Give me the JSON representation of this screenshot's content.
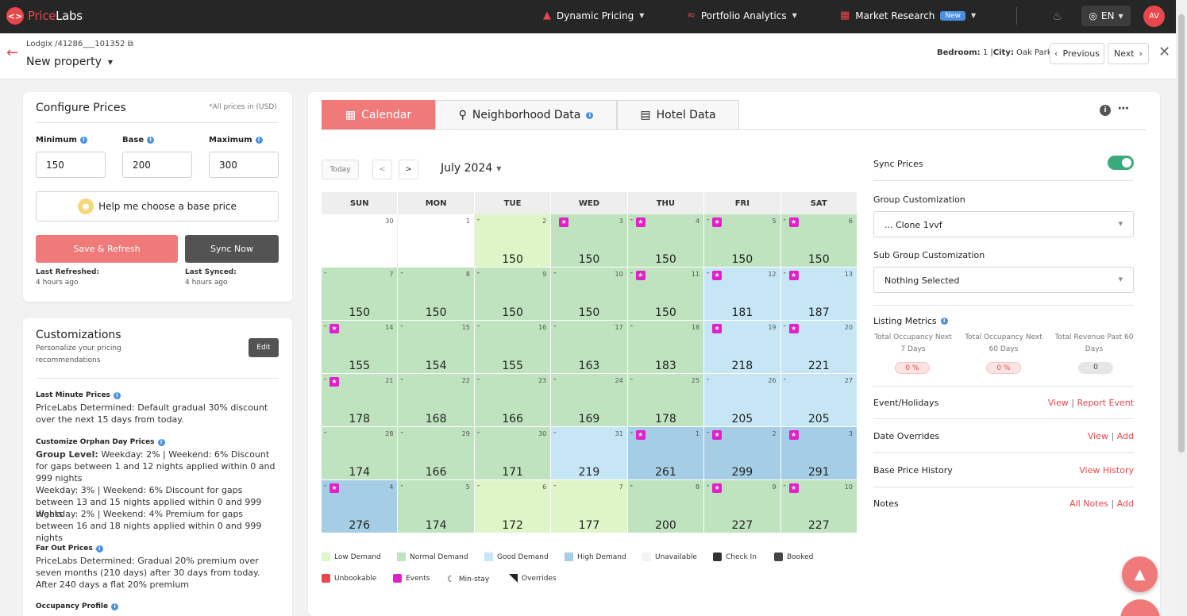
{
  "colors": {
    "brand": "#e8474b",
    "low": "#ddf5c7",
    "normal": "#bfe2bf",
    "good": "#c6e6f6",
    "high": "#a6cde6",
    "unavailable": "#ffffff",
    "star": "#e020c8"
  },
  "topnav": {
    "logo_price": "Price",
    "logo_labs": "Labs",
    "items": [
      {
        "label": "Dynamic Pricing",
        "icon": "flame-icon"
      },
      {
        "label": "Portfolio Analytics",
        "icon": "trend-icon"
      },
      {
        "label": "Market Research",
        "icon": "grid-icon",
        "badge": "New"
      }
    ],
    "lang": "EN",
    "avatar": "AV"
  },
  "subheader": {
    "crumb_prefix": "Lodgix /",
    "crumb_id": "41286___101352",
    "property": "New property",
    "meta_bedroom_label": "Bedroom:",
    "meta_bedroom": "1 |",
    "meta_city_label": "City:",
    "meta_city": "Oak Park",
    "prev": "Previous",
    "next": "Next"
  },
  "configure": {
    "title": "Configure Prices",
    "note": "*All prices in (USD)",
    "min_label": "Minimum",
    "base_label": "Base",
    "max_label": "Maximum",
    "min": "150",
    "base": "200",
    "max": "300",
    "help": "Help me choose a base price",
    "save": "Save & Refresh",
    "sync": "Sync Now",
    "last_refreshed_label": "Last Refreshed:",
    "last_refreshed": "4 hours ago",
    "last_synced_label": "Last Synced:",
    "last_synced": "4 hours ago"
  },
  "customizations": {
    "title": "Customizations",
    "subtitle": "Personalize your pricing recommendations",
    "edit": "Edit",
    "sections": [
      {
        "title": "Last Minute Prices",
        "text": "PriceLabs Determined: Default gradual 30% discount over the next 15 days from today."
      },
      {
        "title": "Customize Orphan Day Prices",
        "text_bold": "Group Level:",
        "text": "Weekday: 2% | Weekend: 6% Discount for gaps between 1 and 12 nights applied within 0 and 999 nights",
        "text2": "Weekday: 3% | Weekend: 6% Discount for gaps between 13 and 15 nights applied within 0 and 999 nights",
        "text3": "Weekday: 2% | Weekend: 4% Premium for gaps between 16 and 18 nights applied within 0 and 999 nights"
      },
      {
        "title": "Far Out Prices",
        "text": "PriceLabs Determined: Gradual 20% premium over seven months (210 days) after 30 days from today. After 240 days a flat 20% premium"
      },
      {
        "title": "Occupancy Profile",
        "text": ""
      }
    ]
  },
  "tabs": [
    {
      "label": "Calendar",
      "icon": "calendar-icon"
    },
    {
      "label": "Neighborhood Data",
      "icon": "pin-icon"
    },
    {
      "label": "Hotel Data",
      "icon": "bed-icon"
    }
  ],
  "calendar": {
    "today": "Today",
    "month": "July 2024",
    "days": [
      "SUN",
      "MON",
      "TUE",
      "WED",
      "THU",
      "FRI",
      "SAT"
    ],
    "cells": [
      {
        "d": "30",
        "p": "",
        "t": "unavailable",
        "s": false,
        "dash": false
      },
      {
        "d": "1",
        "p": "",
        "t": "unavailable",
        "s": false,
        "dash": false
      },
      {
        "d": "2",
        "p": "150",
        "t": "low",
        "s": false,
        "dash": true
      },
      {
        "d": "3",
        "p": "150",
        "t": "normal",
        "s": true,
        "dash": false
      },
      {
        "d": "4",
        "p": "150",
        "t": "normal",
        "s": true,
        "dash": true
      },
      {
        "d": "5",
        "p": "150",
        "t": "normal",
        "s": true,
        "dash": true
      },
      {
        "d": "6",
        "p": "150",
        "t": "normal",
        "s": true,
        "dash": true
      },
      {
        "d": "7",
        "p": "150",
        "t": "normal",
        "s": false,
        "dash": true
      },
      {
        "d": "8",
        "p": "150",
        "t": "normal",
        "s": false,
        "dash": true
      },
      {
        "d": "9",
        "p": "150",
        "t": "normal",
        "s": false,
        "dash": true
      },
      {
        "d": "10",
        "p": "150",
        "t": "normal",
        "s": false,
        "dash": true
      },
      {
        "d": "11",
        "p": "150",
        "t": "normal",
        "s": true,
        "dash": true
      },
      {
        "d": "12",
        "p": "181",
        "t": "good",
        "s": true,
        "dash": true
      },
      {
        "d": "13",
        "p": "187",
        "t": "good",
        "s": true,
        "dash": true
      },
      {
        "d": "14",
        "p": "155",
        "t": "normal",
        "s": true,
        "dash": true
      },
      {
        "d": "15",
        "p": "154",
        "t": "normal",
        "s": false,
        "dash": true
      },
      {
        "d": "16",
        "p": "155",
        "t": "normal",
        "s": false,
        "dash": true
      },
      {
        "d": "17",
        "p": "163",
        "t": "normal",
        "s": false,
        "dash": true
      },
      {
        "d": "18",
        "p": "183",
        "t": "normal",
        "s": false,
        "dash": true
      },
      {
        "d": "19",
        "p": "218",
        "t": "good",
        "s": true,
        "dash": false
      },
      {
        "d": "20",
        "p": "221",
        "t": "good",
        "s": true,
        "dash": true
      },
      {
        "d": "21",
        "p": "178",
        "t": "normal",
        "s": true,
        "dash": true
      },
      {
        "d": "22",
        "p": "168",
        "t": "normal",
        "s": false,
        "dash": true
      },
      {
        "d": "23",
        "p": "166",
        "t": "normal",
        "s": false,
        "dash": true
      },
      {
        "d": "24",
        "p": "169",
        "t": "normal",
        "s": false,
        "dash": true
      },
      {
        "d": "25",
        "p": "178",
        "t": "normal",
        "s": false,
        "dash": true
      },
      {
        "d": "26",
        "p": "205",
        "t": "good",
        "s": false,
        "dash": true
      },
      {
        "d": "27",
        "p": "205",
        "t": "good",
        "s": false,
        "dash": true
      },
      {
        "d": "28",
        "p": "174",
        "t": "normal",
        "s": false,
        "dash": true
      },
      {
        "d": "29",
        "p": "166",
        "t": "normal",
        "s": false,
        "dash": true
      },
      {
        "d": "30",
        "p": "171",
        "t": "normal",
        "s": false,
        "dash": true
      },
      {
        "d": "31",
        "p": "219",
        "t": "good",
        "s": false,
        "dash": true
      },
      {
        "d": "1",
        "p": "261",
        "t": "high",
        "s": true,
        "dash": true
      },
      {
        "d": "2",
        "p": "299",
        "t": "high",
        "s": true,
        "dash": true
      },
      {
        "d": "3",
        "p": "291",
        "t": "high",
        "s": true,
        "dash": false
      },
      {
        "d": "4",
        "p": "276",
        "t": "high",
        "s": true,
        "dash": true
      },
      {
        "d": "5",
        "p": "174",
        "t": "normal",
        "s": false,
        "dash": true
      },
      {
        "d": "6",
        "p": "172",
        "t": "low",
        "s": false,
        "dash": true
      },
      {
        "d": "7",
        "p": "177",
        "t": "low",
        "s": false,
        "dash": true
      },
      {
        "d": "8",
        "p": "200",
        "t": "normal",
        "s": false,
        "dash": true
      },
      {
        "d": "9",
        "p": "227",
        "t": "normal",
        "s": true,
        "dash": true
      },
      {
        "d": "10",
        "p": "227",
        "t": "normal",
        "s": true,
        "dash": true
      }
    ]
  },
  "legend": {
    "row1": [
      "Low Demand",
      "Normal Demand",
      "Good Demand",
      "High Demand",
      "Unavailable",
      "Check In",
      "Booked"
    ],
    "row2": [
      "Unbookable",
      "Events",
      "Min-stay",
      "Overrides"
    ]
  },
  "side": {
    "sync_prices": "Sync Prices",
    "group_label": "Group Customization",
    "group_value": "... Clone 1vvf",
    "subgroup_label": "Sub Group Customization",
    "subgroup_value": "Nothing Selected",
    "metrics_label": "Listing Metrics",
    "metrics": [
      {
        "label": "Total Occupancy Next 7 Days",
        "value": "0 %"
      },
      {
        "label": "Total Occupancy Next 60 Days",
        "value": "0 %"
      },
      {
        "label": "Total Revenue Past 60 Days",
        "value": "0"
      }
    ],
    "events_label": "Event/Holidays",
    "events_view": "View",
    "events_report": "Report Event",
    "overrides_label": "Date Overrides",
    "overrides_view": "View",
    "overrides_add": "Add",
    "history_label": "Base Price History",
    "history_link": "View History",
    "notes_label": "Notes",
    "notes_all": "All Notes",
    "notes_add": "Add",
    "sep": "|"
  }
}
